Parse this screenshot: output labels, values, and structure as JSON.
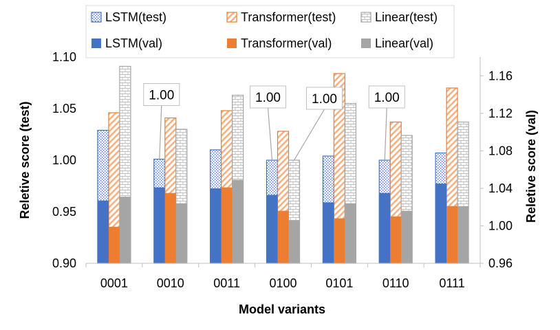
{
  "chart_data": {
    "type": "bar",
    "xlabel": "Model variants",
    "ylabel_left": "Reletive score (test)",
    "ylabel_right": "Reletive score (val)",
    "categories": [
      "0001",
      "0010",
      "0011",
      "0100",
      "0101",
      "0110",
      "0111"
    ],
    "ylim_left": [
      0.9,
      1.1
    ],
    "yticks_left": [
      "0.90",
      "0.95",
      "1.00",
      "1.05",
      "1.10"
    ],
    "ylim_right": [
      0.96,
      1.18
    ],
    "yticks_right": [
      "0.96",
      "1.00",
      "1.04",
      "1.08",
      "1.12",
      "1.16"
    ],
    "grid": false,
    "legend_position": "top",
    "series": [
      {
        "name": "LSTM(test)",
        "axis": "left",
        "style": "dotted",
        "color": "#4472C4",
        "values": [
          1.029,
          1.001,
          1.01,
          1.0,
          1.004,
          1.0,
          1.007
        ]
      },
      {
        "name": "Transformer(test)",
        "axis": "left",
        "style": "striped",
        "color": "#ED7D31",
        "values": [
          1.046,
          1.041,
          1.048,
          1.028,
          1.084,
          1.037,
          1.07
        ]
      },
      {
        "name": "Linear(test)",
        "axis": "left",
        "style": "brick",
        "color": "#A5A5A5",
        "values": [
          1.091,
          1.03,
          1.063,
          1.0,
          1.055,
          1.024,
          1.037
        ]
      },
      {
        "name": "LSTM(val)",
        "axis": "right",
        "style": "solid",
        "color": "#4472C4",
        "values": [
          1.027,
          1.041,
          1.04,
          1.033,
          1.025,
          1.035,
          1.045
        ]
      },
      {
        "name": "Transformer(val)",
        "axis": "right",
        "style": "solid",
        "color": "#ED7D31",
        "values": [
          0.999,
          1.035,
          1.041,
          1.016,
          1.008,
          1.01,
          1.021
        ]
      },
      {
        "name": "Linear(val)",
        "axis": "right",
        "style": "solid",
        "color": "#A5A5A5",
        "values": [
          1.031,
          1.024,
          1.049,
          1.006,
          1.024,
          1.016,
          1.021
        ]
      }
    ],
    "annotations": [
      {
        "text": "1.00",
        "category": "0010",
        "series": "LSTM(test)",
        "value": 1.001
      },
      {
        "text": "1.00",
        "category": "0100",
        "series": "LSTM(test)",
        "value": 1.0
      },
      {
        "text": "1.00",
        "category": "0100",
        "series": "Linear(test)",
        "value": 1.0
      },
      {
        "text": "1.00",
        "category": "0110",
        "series": "LSTM(test)",
        "value": 1.0
      }
    ]
  }
}
